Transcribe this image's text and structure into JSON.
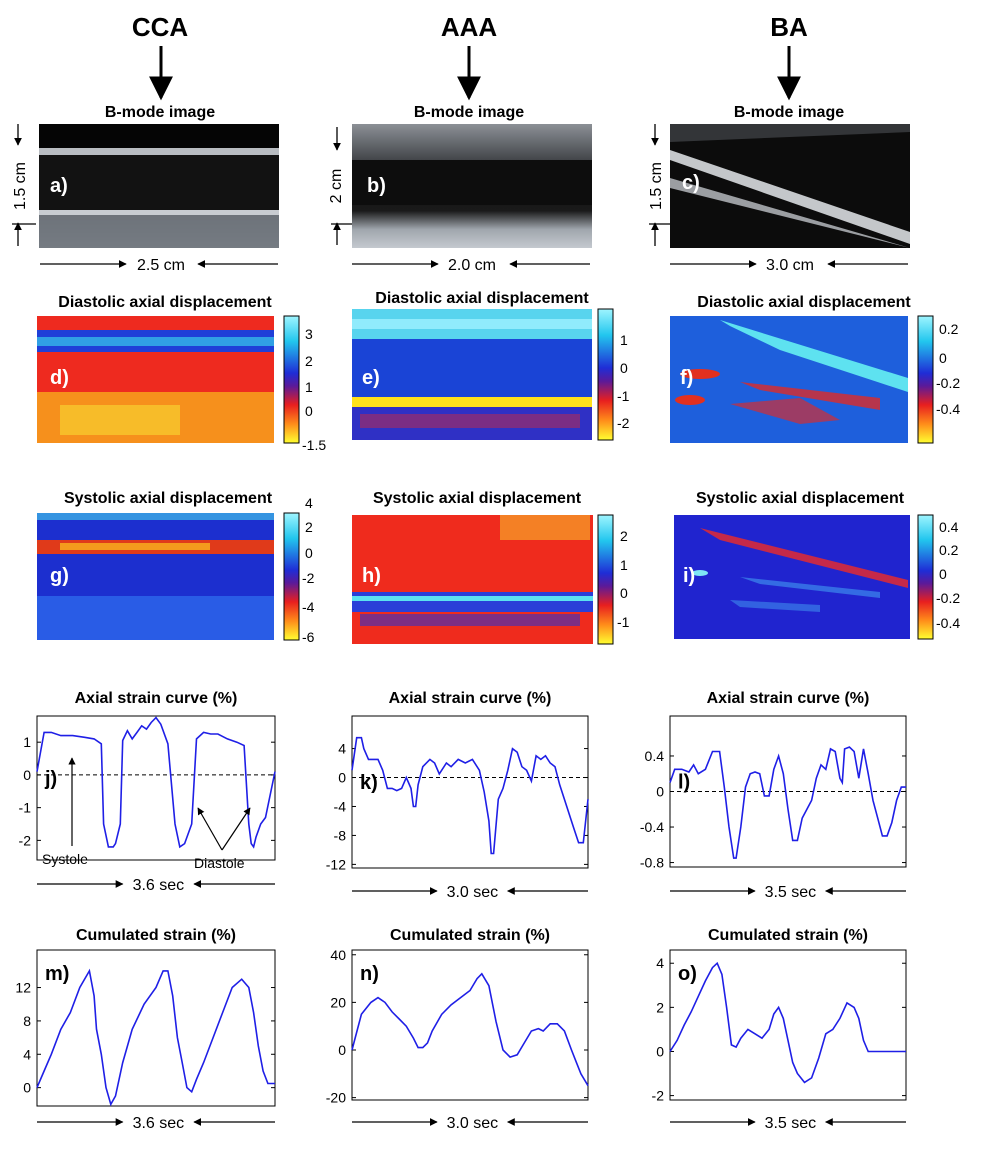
{
  "columns": [
    {
      "id": "cca",
      "title": "CCA",
      "bmode_label": "a)",
      "axial_dim": "1.5 cm",
      "lateral_dim": "2.5 cm"
    },
    {
      "id": "aaa",
      "title": "AAA",
      "bmode_label": "b)",
      "axial_dim": "2 cm",
      "lateral_dim": "2.0 cm"
    },
    {
      "id": "ba",
      "title": "BA",
      "bmode_label": "c)",
      "axial_dim": "1.5 cm",
      "lateral_dim": "3.0 cm"
    }
  ],
  "titles": {
    "bmode": "B-mode image",
    "diastolic": "Diastolic axial displacement",
    "systolic": "Systolic axial displacement",
    "strain": "Axial strain curve (%)",
    "cumulated": "Cumulated strain (%)"
  },
  "colorbars": [
    {
      "panel": "d)",
      "ticks": [
        "3",
        "2",
        "1",
        "0",
        "-1.5"
      ]
    },
    {
      "panel": "e)",
      "ticks": [
        "1",
        "0",
        "-1",
        "-2"
      ]
    },
    {
      "panel": "f)",
      "ticks": [
        "0.2",
        "0",
        "-0.2",
        "-0.4"
      ]
    },
    {
      "panel": "g)",
      "ticks": [
        "4",
        "2",
        "0",
        "-2",
        "-4",
        "-6"
      ]
    },
    {
      "panel": "h)",
      "ticks": [
        "2",
        "1",
        "0",
        "-1"
      ]
    },
    {
      "panel": "i)",
      "ticks": [
        "0.4",
        "0.2",
        "0",
        "-0.2",
        "-0.4"
      ]
    }
  ],
  "annotations": {
    "systole": "Systole",
    "diastole": "Diastole"
  },
  "chart_data": [
    {
      "type": "line",
      "panel": "j)",
      "title": "Axial strain curve (%)",
      "xlabel": "3.6 sec",
      "ylabel": "",
      "ylim": [
        -2.6,
        1.8
      ],
      "yticks": [
        1,
        0,
        -1,
        -2
      ],
      "x": [
        0,
        0.03,
        0.06,
        0.1,
        0.15,
        0.2,
        0.24,
        0.27,
        0.28,
        0.3,
        0.32,
        0.33,
        0.35,
        0.36,
        0.38,
        0.4,
        0.42,
        0.44,
        0.46,
        0.48,
        0.5,
        0.52,
        0.55,
        0.58,
        0.6,
        0.62,
        0.65,
        0.67,
        0.7,
        0.73,
        0.76,
        0.8,
        0.84,
        0.87,
        0.89,
        0.9,
        0.91,
        0.92,
        0.94,
        0.96,
        1.0
      ],
      "values": [
        0.1,
        1.3,
        1.3,
        1.2,
        1.2,
        1.15,
        1.1,
        0.95,
        -1.5,
        -2.2,
        -2.2,
        -2.1,
        -1.5,
        1.05,
        1.35,
        1.1,
        1.3,
        1.5,
        1.4,
        1.6,
        1.75,
        1.55,
        0.95,
        -1.5,
        -2.2,
        -2.1,
        -1.5,
        1.1,
        1.3,
        1.25,
        1.25,
        1.1,
        1.0,
        0.9,
        -1.5,
        -2.1,
        -2.2,
        -1.9,
        -1.5,
        -1.3,
        0.1
      ]
    },
    {
      "type": "line",
      "panel": "k)",
      "title": "Axial strain curve (%)",
      "xlabel": "3.0 sec",
      "ylabel": "",
      "ylim": [
        -12.5,
        8.5
      ],
      "yticks": [
        4,
        0,
        -4,
        -8,
        -12
      ],
      "x": [
        0,
        0.02,
        0.04,
        0.05,
        0.07,
        0.09,
        0.11,
        0.13,
        0.15,
        0.17,
        0.19,
        0.21,
        0.23,
        0.25,
        0.26,
        0.27,
        0.28,
        0.3,
        0.33,
        0.35,
        0.37,
        0.4,
        0.42,
        0.45,
        0.48,
        0.51,
        0.54,
        0.56,
        0.58,
        0.59,
        0.6,
        0.62,
        0.64,
        0.66,
        0.68,
        0.7,
        0.72,
        0.74,
        0.76,
        0.78,
        0.8,
        0.82,
        0.84,
        0.86,
        0.88,
        0.9,
        0.92,
        0.94,
        0.96,
        0.98,
        1.0
      ],
      "values": [
        1,
        5.5,
        5.5,
        4,
        2.5,
        2.5,
        2.5,
        1,
        -1.5,
        -1.5,
        -1.8,
        -1.5,
        0,
        -1.5,
        -4,
        -4,
        -1,
        1.5,
        2.5,
        2,
        0.5,
        2,
        1.5,
        2.5,
        2,
        2.5,
        1,
        -2,
        -6,
        -10.5,
        -10.5,
        -3,
        -1.5,
        1,
        4,
        3.5,
        1.5,
        1,
        -0.5,
        3,
        2.5,
        3,
        2,
        1.5,
        -1,
        -3,
        -5,
        -7,
        -9,
        -9,
        -3
      ]
    },
    {
      "type": "line",
      "panel": "l)",
      "title": "Axial strain curve (%)",
      "xlabel": "3.5 sec",
      "ylabel": "",
      "ylim": [
        -0.85,
        0.85
      ],
      "yticks": [
        0.4,
        0,
        -0.4,
        -0.8
      ],
      "x": [
        0,
        0.02,
        0.05,
        0.08,
        0.1,
        0.12,
        0.15,
        0.18,
        0.21,
        0.23,
        0.25,
        0.27,
        0.28,
        0.3,
        0.32,
        0.34,
        0.36,
        0.38,
        0.4,
        0.42,
        0.44,
        0.46,
        0.48,
        0.5,
        0.52,
        0.54,
        0.56,
        0.58,
        0.6,
        0.62,
        0.64,
        0.66,
        0.68,
        0.7,
        0.72,
        0.73,
        0.74,
        0.76,
        0.78,
        0.8,
        0.82,
        0.84,
        0.86,
        0.88,
        0.9,
        0.92,
        0.94,
        0.96,
        0.98,
        1.0
      ],
      "values": [
        0.1,
        0.25,
        0.25,
        0.22,
        0.3,
        0.2,
        0.25,
        0.45,
        0.45,
        0.05,
        -0.4,
        -0.75,
        -0.75,
        -0.4,
        0.05,
        0.2,
        0.22,
        0.2,
        -0.05,
        -0.05,
        0.25,
        0.4,
        0.2,
        -0.2,
        -0.55,
        -0.55,
        -0.3,
        -0.2,
        -0.1,
        0.15,
        0.3,
        0.25,
        0.48,
        0.45,
        0.15,
        0.1,
        0.48,
        0.5,
        0.45,
        0.15,
        0.48,
        0.2,
        -0.1,
        -0.3,
        -0.5,
        -0.5,
        -0.35,
        -0.1,
        0.05,
        0.05
      ]
    },
    {
      "type": "line",
      "panel": "m)",
      "title": "Cumulated strain (%)",
      "xlabel": "3.6 sec",
      "ylabel": "",
      "ylim": [
        -2.2,
        16.5
      ],
      "yticks": [
        12,
        8,
        4,
        0
      ],
      "x": [
        0,
        0.03,
        0.06,
        0.1,
        0.14,
        0.18,
        0.22,
        0.24,
        0.25,
        0.27,
        0.29,
        0.31,
        0.33,
        0.36,
        0.4,
        0.45,
        0.5,
        0.53,
        0.55,
        0.57,
        0.59,
        0.61,
        0.63,
        0.65,
        0.67,
        0.7,
        0.74,
        0.78,
        0.82,
        0.86,
        0.89,
        0.91,
        0.93,
        0.95,
        0.97,
        1.0
      ],
      "values": [
        0,
        2,
        4,
        7,
        9,
        12,
        14,
        11,
        7,
        4,
        0,
        -2,
        -1,
        3,
        7,
        10,
        12,
        14,
        14,
        11,
        6,
        3,
        0,
        -0.5,
        1,
        3,
        6,
        9,
        12,
        13,
        12,
        9,
        5,
        2,
        0.5,
        0.5
      ]
    },
    {
      "type": "line",
      "panel": "n)",
      "title": "Cumulated strain (%)",
      "xlabel": "3.0 sec",
      "ylabel": "",
      "ylim": [
        -21,
        42
      ],
      "yticks": [
        40,
        20,
        0,
        -20
      ],
      "x": [
        0,
        0.04,
        0.08,
        0.11,
        0.14,
        0.17,
        0.2,
        0.23,
        0.26,
        0.28,
        0.3,
        0.32,
        0.34,
        0.38,
        0.42,
        0.46,
        0.5,
        0.53,
        0.55,
        0.58,
        0.61,
        0.64,
        0.67,
        0.7,
        0.73,
        0.76,
        0.79,
        0.81,
        0.84,
        0.87,
        0.9,
        0.93,
        0.95,
        0.97,
        1.0
      ],
      "values": [
        0,
        15,
        20,
        22,
        20,
        16,
        13,
        10,
        5,
        1,
        1,
        3,
        8,
        15,
        19,
        22,
        25,
        30,
        32,
        27,
        12,
        0,
        -3,
        -2,
        3,
        8,
        9,
        8,
        11,
        11,
        8,
        0,
        -5,
        -10,
        -15
      ]
    },
    {
      "type": "line",
      "panel": "o)",
      "title": "Cumulated strain (%)",
      "xlabel": "3.5 sec",
      "ylabel": "",
      "ylim": [
        -2.2,
        4.6
      ],
      "yticks": [
        4,
        2,
        0,
        -2
      ],
      "x": [
        0,
        0.03,
        0.06,
        0.09,
        0.12,
        0.15,
        0.18,
        0.2,
        0.22,
        0.24,
        0.26,
        0.28,
        0.3,
        0.33,
        0.36,
        0.39,
        0.42,
        0.44,
        0.46,
        0.48,
        0.5,
        0.52,
        0.54,
        0.57,
        0.6,
        0.63,
        0.66,
        0.69,
        0.72,
        0.75,
        0.78,
        0.8,
        0.82,
        0.84,
        0.86,
        0.88,
        0.9,
        0.92,
        0.95,
        0.98,
        1.0
      ],
      "values": [
        0,
        0.5,
        1.2,
        1.8,
        2.5,
        3.2,
        3.8,
        4,
        3.5,
        2,
        0.3,
        0.2,
        0.6,
        1,
        0.8,
        0.6,
        1,
        1.7,
        2,
        1.5,
        0.5,
        -0.5,
        -1,
        -1.4,
        -1.2,
        -0.3,
        0.8,
        1,
        1.5,
        2.2,
        2,
        1.5,
        0.5,
        0,
        0,
        0,
        0,
        0,
        0,
        0,
        0
      ]
    }
  ]
}
